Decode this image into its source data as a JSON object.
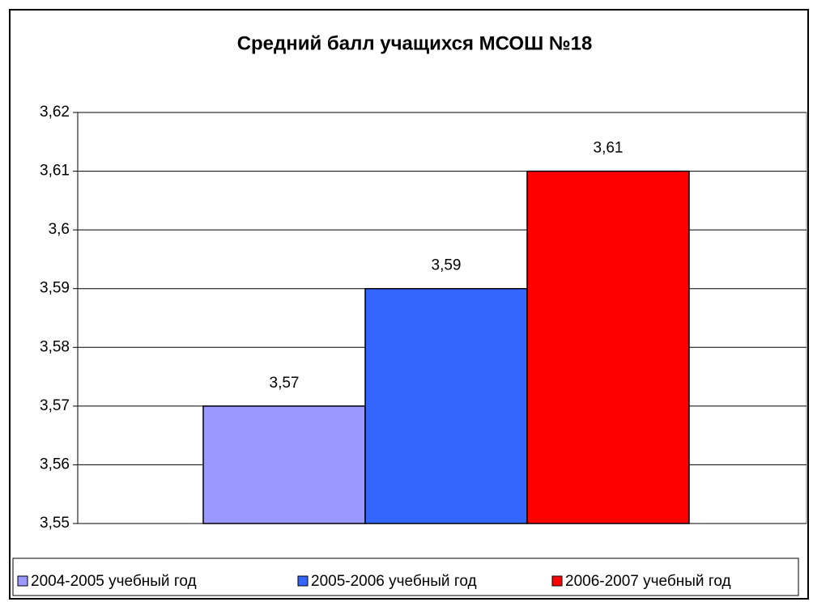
{
  "chart_data": {
    "type": "bar",
    "title": "Средний балл  учащихся МСОШ №18",
    "categories": [
      null
    ],
    "series": [
      {
        "name": "2004-2005 учебный год",
        "color": "#9999ff",
        "values": [
          3.57
        ],
        "value_labels": [
          "3,57"
        ]
      },
      {
        "name": "2005-2006 учебный год",
        "color": "#3366ff",
        "values": [
          3.59
        ],
        "value_labels": [
          "3,59"
        ]
      },
      {
        "name": "2006-2007 учебный год",
        "color": "#ff0000",
        "values": [
          3.61
        ],
        "value_labels": [
          "3,61"
        ]
      }
    ],
    "ylim": [
      3.55,
      3.62
    ],
    "yticks": [
      {
        "value": 3.55,
        "label": "3,55"
      },
      {
        "value": 3.56,
        "label": "3,56"
      },
      {
        "value": 3.57,
        "label": "3,57"
      },
      {
        "value": 3.58,
        "label": "3,58"
      },
      {
        "value": 3.59,
        "label": "3,59"
      },
      {
        "value": 3.6,
        "label": "3,6"
      },
      {
        "value": 3.61,
        "label": "3,61"
      },
      {
        "value": 3.62,
        "label": "3,62"
      }
    ],
    "grid": true,
    "legend": "bottom"
  }
}
